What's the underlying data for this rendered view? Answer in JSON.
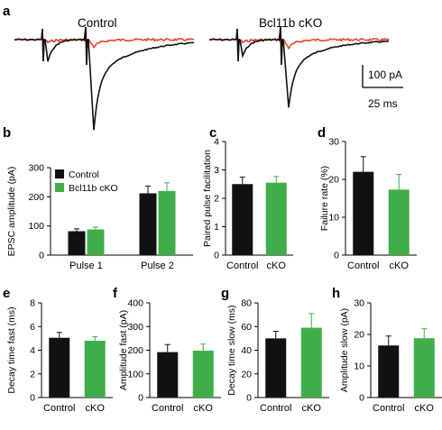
{
  "colors": {
    "control": "#111111",
    "cko": "#3fae49",
    "trace_cko": "#e8412c"
  },
  "traces": {
    "panel_label": "a",
    "left_title": "Control",
    "right_title": "Bcl11b cKO",
    "scale_current": "100 pA",
    "scale_time": "25 ms"
  },
  "legend": {
    "control": "Control",
    "cko": "Bcl11b cKO"
  },
  "chart_data": [
    {
      "id": "b",
      "panel_label": "b",
      "type": "bar",
      "categories": [
        "Pulse 1",
        "Pulse 2"
      ],
      "series": [
        {
          "name": "Control",
          "values": [
            82,
            212
          ],
          "errors": [
            8,
            25
          ]
        },
        {
          "name": "Bcl11b cKO",
          "values": [
            88,
            220
          ],
          "errors": [
            8,
            28
          ]
        }
      ],
      "ylabel": "EPSC amplitude (pA)",
      "ylim": [
        0,
        300
      ],
      "yticks": [
        "0",
        "100",
        "200",
        "300"
      ]
    },
    {
      "id": "c",
      "panel_label": "c",
      "type": "bar",
      "categories": [
        "Control",
        "cKO"
      ],
      "values": [
        2.5,
        2.55
      ],
      "errors": [
        0.25,
        0.22
      ],
      "ylabel": "Paired pulse facilitation",
      "ylim": [
        0,
        4
      ],
      "yticks": [
        "0",
        "1",
        "2",
        "3",
        "4"
      ]
    },
    {
      "id": "d",
      "panel_label": "d",
      "type": "bar",
      "categories": [
        "Control",
        "cKO"
      ],
      "values": [
        22,
        17.3
      ],
      "errors": [
        4,
        4
      ],
      "ylabel": "Failure rate (%)",
      "ylim": [
        0,
        30
      ],
      "yticks": [
        "0",
        "10",
        "20",
        "30"
      ]
    },
    {
      "id": "e",
      "panel_label": "e",
      "type": "bar",
      "categories": [
        "Control",
        "cKO"
      ],
      "values": [
        5.05,
        4.8
      ],
      "errors": [
        0.45,
        0.35
      ],
      "ylabel": "Decay time fast (ms)",
      "ylim": [
        0,
        8
      ],
      "yticks": [
        "0",
        "2",
        "4",
        "6",
        "8"
      ]
    },
    {
      "id": "f",
      "panel_label": "f",
      "type": "bar",
      "categories": [
        "Control",
        "cKO"
      ],
      "values": [
        192,
        198
      ],
      "errors": [
        32,
        28
      ],
      "ylabel": "Amplitude fast (pA)",
      "ylim": [
        0,
        400
      ],
      "yticks": [
        "0",
        "100",
        "200",
        "300",
        "400"
      ]
    },
    {
      "id": "g",
      "panel_label": "g",
      "type": "bar",
      "categories": [
        "Control",
        "cKO"
      ],
      "values": [
        50,
        59
      ],
      "errors": [
        6,
        12
      ],
      "ylabel": "Decay time slow (ms)",
      "ylim": [
        0,
        80
      ],
      "yticks": [
        "0",
        "20",
        "40",
        "60",
        "80"
      ]
    },
    {
      "id": "h",
      "panel_label": "h",
      "type": "bar",
      "categories": [
        "Control",
        "cKO"
      ],
      "values": [
        16.5,
        18.8
      ],
      "errors": [
        3,
        3
      ],
      "ylabel": "Amplitude slow (pA)",
      "ylim": [
        0,
        30
      ],
      "yticks": [
        "0",
        "10",
        "20",
        "30"
      ]
    }
  ]
}
